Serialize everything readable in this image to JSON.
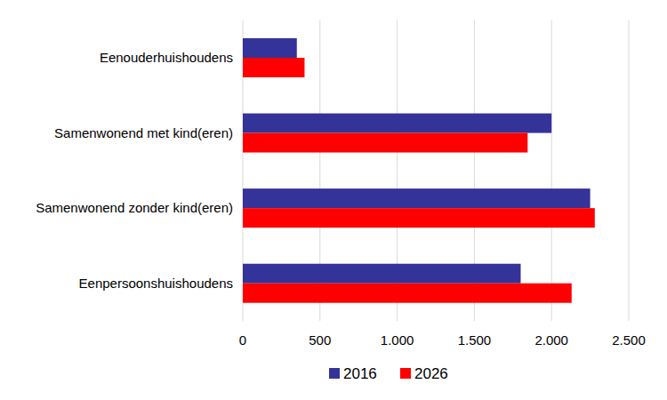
{
  "chart_data": {
    "type": "bar",
    "orientation": "horizontal",
    "categories": [
      "Eenouderhuishoudens",
      "Samenwonend met kind(eren)",
      "Samenwonend zonder kind(eren)",
      "Eenpersoonshuishoudens"
    ],
    "series": [
      {
        "name": "2016",
        "color": "#333399",
        "values": [
          350,
          2000,
          2250,
          1800
        ]
      },
      {
        "name": "2026",
        "color": "#ff0000",
        "values": [
          400,
          1845,
          2280,
          2130
        ]
      }
    ],
    "xlim": [
      0,
      2500
    ],
    "xticks": [
      0,
      500,
      {
        "value": 1000,
        "label": "1.000"
      },
      {
        "value": 1500,
        "label": "1.500"
      },
      {
        "value": 2000,
        "label": "2.000"
      },
      {
        "value": 2500,
        "label": "2.500"
      }
    ],
    "grid": true,
    "legend": "bottom"
  }
}
